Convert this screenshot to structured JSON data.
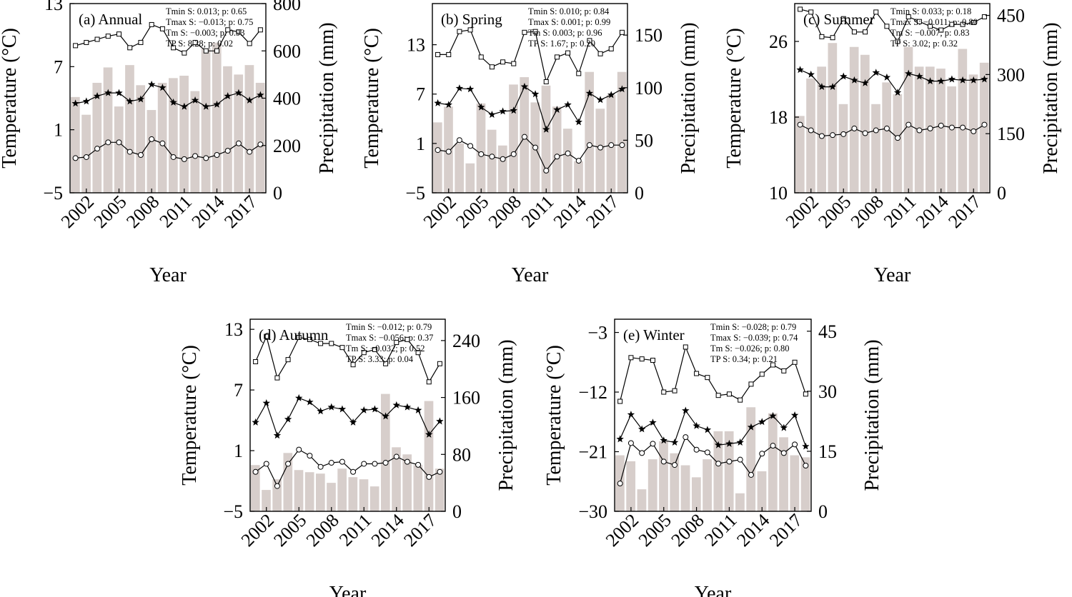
{
  "chart_data": [
    {
      "id": "annual",
      "type": "bar+line",
      "title": "(a) Annual",
      "stats": [
        "Tmin S: 0.013; p: 0.65",
        "Tmax S: −0.013; p: 0.75",
        "Tm S: −0.003; p: 0.93",
        "TP S: 8.28; p: 0.02"
      ],
      "xlabel": "Year",
      "ylabel_left": "Temperature (°C)",
      "ylabel_right": "Precipitation (mm)",
      "x": [
        2001,
        2002,
        2003,
        2004,
        2005,
        2006,
        2007,
        2008,
        2009,
        2010,
        2011,
        2012,
        2013,
        2014,
        2015,
        2016,
        2017,
        2018
      ],
      "x_ticks": [
        "2002",
        "2005",
        "2008",
        "2011",
        "2014",
        "2017"
      ],
      "x_tick_values": [
        2002,
        2005,
        2008,
        2011,
        2014,
        2017
      ],
      "ylim_left": [
        -5,
        13
      ],
      "yticks_left": [
        -5,
        1,
        7,
        13
      ],
      "yticks_left_labels": [
        "−5",
        "1",
        "7",
        "13"
      ],
      "ylim_right": [
        0,
        800
      ],
      "yticks_right": [
        0,
        200,
        400,
        600,
        800
      ],
      "yticks_right_labels": [
        "0",
        "200",
        "400",
        "600",
        "800"
      ],
      "precipitation": [
        405,
        330,
        465,
        530,
        365,
        540,
        455,
        350,
        465,
        485,
        495,
        430,
        610,
        635,
        535,
        500,
        540,
        465
      ],
      "tmax": [
        9.0,
        9.3,
        9.6,
        9.9,
        10.1,
        8.8,
        9.3,
        11.0,
        10.6,
        8.8,
        8.3,
        9.3,
        8.5,
        8.5,
        10.5,
        10.3,
        9.2,
        10.5
      ],
      "tm": [
        3.5,
        3.7,
        4.2,
        4.5,
        4.5,
        3.7,
        3.9,
        5.3,
        5.0,
        3.6,
        3.2,
        3.8,
        3.2,
        3.4,
        4.2,
        4.5,
        3.8,
        4.3
      ],
      "tmin": [
        -1.7,
        -1.6,
        -0.8,
        -0.2,
        -0.2,
        -1.1,
        -1.4,
        0.1,
        -0.3,
        -1.6,
        -1.8,
        -1.5,
        -1.7,
        -1.4,
        -1.0,
        -0.3,
        -1.1,
        -0.4
      ]
    },
    {
      "id": "spring",
      "type": "bar+line",
      "title": "(b) Spring",
      "stats": [
        "Tmin S: 0.010; p: 0.84",
        "Tmax S: 0.001; p: 0.99",
        "Tm S: 0.003; p: 0.96",
        "TP S: 1.67; p: 0.20"
      ],
      "xlabel": "Year",
      "ylabel_left": "Temperature (°C)",
      "ylabel_right": "Precipitation (mm)",
      "x": [
        2001,
        2002,
        2003,
        2004,
        2005,
        2006,
        2007,
        2008,
        2009,
        2010,
        2011,
        2012,
        2013,
        2014,
        2015,
        2016,
        2017,
        2018
      ],
      "x_ticks": [
        "2002",
        "2005",
        "2008",
        "2011",
        "2014",
        "2017"
      ],
      "x_tick_values": [
        2002,
        2005,
        2008,
        2011,
        2014,
        2017
      ],
      "ylim_left": [
        -5,
        18
      ],
      "yticks_left": [
        -5,
        1,
        7,
        13
      ],
      "yticks_left_labels": [
        "−5",
        "1",
        "7",
        "13"
      ],
      "ylim_right": [
        0,
        180
      ],
      "yticks_right": [
        0,
        50,
        100,
        150
      ],
      "yticks_right_labels": [
        "0",
        "50",
        "100",
        "150"
      ],
      "precipitation": [
        67,
        82,
        47,
        28,
        85,
        60,
        45,
        103,
        110,
        86,
        102,
        82,
        61,
        30,
        115,
        80,
        93,
        115
      ],
      "tmax": [
        11.8,
        11.8,
        14.6,
        14.8,
        11.5,
        10.3,
        10.9,
        10.7,
        14.5,
        14.6,
        8.5,
        11.5,
        12.0,
        9.5,
        13.5,
        11.9,
        12.5,
        14.5
      ],
      "tm": [
        5.9,
        5.7,
        7.7,
        7.6,
        5.4,
        4.5,
        4.9,
        5.0,
        7.9,
        7.0,
        2.7,
        5.1,
        5.7,
        3.6,
        7.1,
        6.3,
        6.9,
        7.6
      ],
      "tmin": [
        0.2,
        0.0,
        1.4,
        0.7,
        -0.3,
        -0.6,
        -0.9,
        -0.3,
        1.8,
        0.5,
        -2.3,
        -0.6,
        -0.2,
        -1.1,
        0.8,
        0.5,
        0.8,
        0.8
      ]
    },
    {
      "id": "summer",
      "type": "bar+line",
      "title": "(c) Summer",
      "stats": [
        "Tmin S: 0.033; p: 0.18",
        "Tmax S: −0.011; p: 0.80",
        "Tm S: −0.007; p: 0.83",
        "TP S: 3.02; p: 0.32"
      ],
      "xlabel": "Year",
      "ylabel_left": "Temperature (°C)",
      "ylabel_right": "Precipitation (mm)",
      "x": [
        2001,
        2002,
        2003,
        2004,
        2005,
        2006,
        2007,
        2008,
        2009,
        2010,
        2011,
        2012,
        2013,
        2014,
        2015,
        2016,
        2017,
        2018
      ],
      "x_ticks": [
        "2002",
        "2005",
        "2008",
        "2011",
        "2014",
        "2017"
      ],
      "x_tick_values": [
        2002,
        2005,
        2008,
        2011,
        2014,
        2017
      ],
      "ylim_left": [
        10,
        30
      ],
      "yticks_left": [
        10,
        18,
        26
      ],
      "yticks_left_labels": [
        "10",
        "18",
        "26"
      ],
      "ylim_right": [
        0,
        480
      ],
      "yticks_right": [
        0,
        150,
        300,
        450
      ],
      "yticks_right_labels": [
        "0",
        "150",
        "300",
        "450"
      ],
      "precipitation": [
        195,
        290,
        320,
        380,
        225,
        370,
        350,
        225,
        280,
        250,
        370,
        320,
        320,
        315,
        270,
        365,
        300,
        330
      ],
      "tmax": [
        29.4,
        29.1,
        26.5,
        26.4,
        28.4,
        27.0,
        27.0,
        29.1,
        27.6,
        26.0,
        28.6,
        28.1,
        27.6,
        27.2,
        27.8,
        27.8,
        28.0,
        28.6
      ],
      "tm": [
        23.0,
        22.5,
        21.2,
        21.2,
        22.3,
        21.9,
        21.6,
        22.7,
        22.2,
        20.6,
        22.6,
        22.3,
        21.8,
        21.8,
        22.0,
        21.9,
        21.9,
        22.0
      ],
      "tmin": [
        17.2,
        16.6,
        16.0,
        16.1,
        16.2,
        16.8,
        16.3,
        16.6,
        16.8,
        15.8,
        17.2,
        16.6,
        16.8,
        17.1,
        16.9,
        16.9,
        16.5,
        17.2
      ]
    },
    {
      "id": "autumn",
      "type": "bar+line",
      "title": "(d) Autumn",
      "stats": [
        "Tmin S: −0.012; p: 0.79",
        "Tmax S: −0.056; p: 0.37",
        "Tm S: −0.032; p: 0.52",
        "TP S: 3.33; p: 0.04"
      ],
      "xlabel": "Year",
      "ylabel_left": "Temperature (°C)",
      "ylabel_right": "Precipitation (mm)",
      "x": [
        2001,
        2002,
        2003,
        2004,
        2005,
        2006,
        2007,
        2008,
        2009,
        2010,
        2011,
        2012,
        2013,
        2014,
        2015,
        2016,
        2017,
        2018
      ],
      "x_ticks": [
        "2002",
        "2005",
        "2008",
        "2011",
        "2014",
        "2017"
      ],
      "x_tick_values": [
        2002,
        2005,
        2008,
        2011,
        2014,
        2017
      ],
      "ylim_left": [
        -5,
        14
      ],
      "yticks_left": [
        -5,
        1,
        7,
        13
      ],
      "yticks_left_labels": [
        "−5",
        "1",
        "7",
        "13"
      ],
      "ylim_right": [
        0,
        270
      ],
      "yticks_right": [
        0,
        80,
        160,
        240
      ],
      "yticks_right_labels": [
        "0",
        "80",
        "160",
        "240"
      ],
      "precipitation": [
        65,
        30,
        45,
        82,
        58,
        55,
        53,
        40,
        60,
        48,
        45,
        35,
        165,
        90,
        80,
        65,
        155,
        60
      ],
      "tmax": [
        9.8,
        12.3,
        8.2,
        10.0,
        12.2,
        12.0,
        11.6,
        11.6,
        11.2,
        9.5,
        10.7,
        11.0,
        9.6,
        11.7,
        12.0,
        10.7,
        7.8,
        9.6
      ],
      "tm": [
        3.8,
        5.7,
        2.5,
        4.1,
        6.2,
        5.8,
        4.9,
        5.3,
        5.1,
        3.8,
        5.0,
        5.1,
        4.4,
        5.5,
        5.3,
        5.0,
        2.6,
        3.9
      ],
      "tmin": [
        -1.1,
        -0.3,
        -2.5,
        -0.3,
        1.1,
        0.5,
        -0.6,
        -0.2,
        -0.1,
        -1.1,
        -0.3,
        -0.3,
        -0.2,
        0.4,
        -0.1,
        -0.4,
        -1.6,
        -1.1
      ]
    },
    {
      "id": "winter",
      "type": "bar+line",
      "title": "(e) Winter",
      "stats": [
        "Tmin S: −0.028; p: 0.79",
        "Tmax S: −0.039; p: 0.74",
        "Tm S: −0.026; p: 0.80",
        "TP S: 0.34; p: 0.21"
      ],
      "xlabel": "Year",
      "ylabel_left": "Temperature (°C)",
      "ylabel_right": "Precipitation (mm)",
      "x": [
        2001,
        2002,
        2003,
        2004,
        2005,
        2006,
        2007,
        2008,
        2009,
        2010,
        2011,
        2012,
        2013,
        2014,
        2015,
        2016,
        2017,
        2018
      ],
      "x_ticks": [
        "2002",
        "2005",
        "2008",
        "2011",
        "2014",
        "2017"
      ],
      "x_tick_values": [
        2002,
        2005,
        2008,
        2011,
        2014,
        2017
      ],
      "ylim_left": [
        -30,
        -1
      ],
      "yticks_left": [
        -30,
        -21,
        -12,
        -3
      ],
      "yticks_left_labels": [
        "−30",
        "−21",
        "−12",
        "−3"
      ],
      "ylim_right": [
        0,
        48
      ],
      "yticks_right": [
        0,
        15,
        30,
        45
      ],
      "yticks_right_labels": [
        "0",
        "15",
        "30",
        "45"
      ],
      "precipitation": [
        14,
        12.5,
        5.5,
        13,
        17.5,
        14.5,
        11.5,
        8.5,
        13,
        20,
        20,
        4.5,
        26,
        10,
        24.5,
        18.5,
        14,
        13.5
      ],
      "tmax": [
        -13.4,
        -6.8,
        -7.0,
        -7.2,
        -12.0,
        -11.8,
        -5.2,
        -9.2,
        -9.8,
        -12.5,
        -12.3,
        -13.2,
        -10.8,
        -9.3,
        -7.9,
        -8.8,
        -7.5,
        -12.3
      ],
      "tm": [
        -19.1,
        -15.4,
        -17.6,
        -16.6,
        -19.3,
        -19.6,
        -14.8,
        -17.1,
        -17.7,
        -20.0,
        -19.8,
        -19.6,
        -17.3,
        -16.5,
        -15.6,
        -17.4,
        -15.5,
        -20.2
      ],
      "tmin": [
        -25.8,
        -19.7,
        -21.2,
        -19.8,
        -22.5,
        -23.0,
        -18.8,
        -20.7,
        -21.1,
        -22.8,
        -22.5,
        -22.2,
        -24.5,
        -21.3,
        -20.1,
        -21.2,
        -19.9,
        -23.1
      ]
    }
  ]
}
